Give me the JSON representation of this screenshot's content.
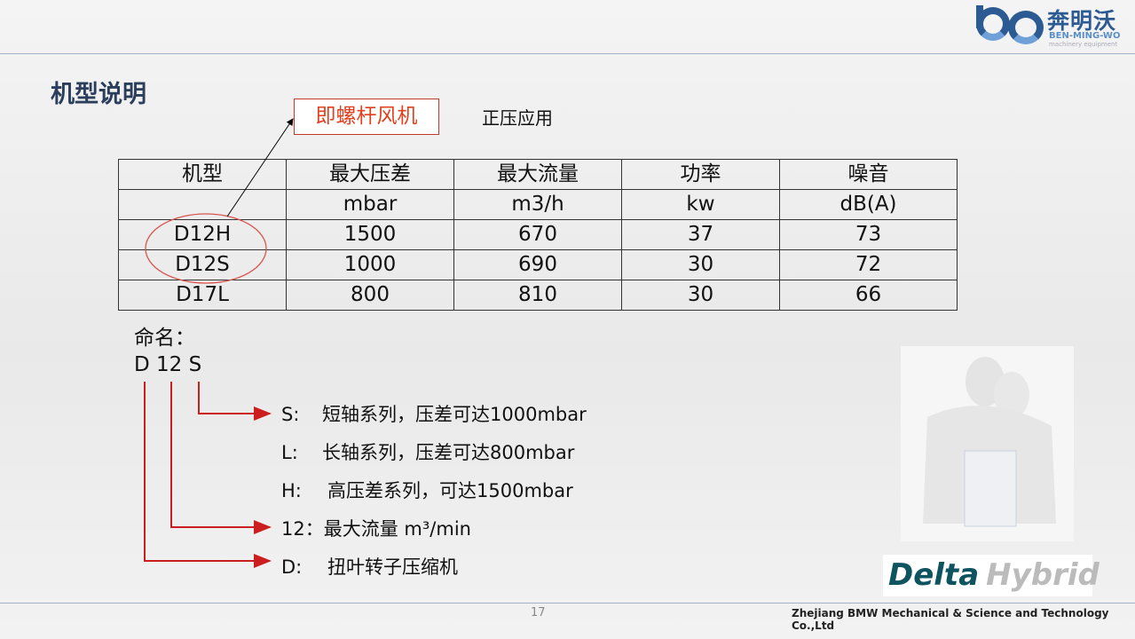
{
  "logo": {
    "cn": "奔明沃",
    "en": "BEN-MING-WO",
    "sub": "machinery equipment",
    "colors": {
      "primary": "#2c5a92",
      "light": "#6fa0d8"
    }
  },
  "title": "机型说明",
  "callout": "即螺杆风机",
  "note": "正压应用",
  "table": {
    "headers": [
      "机型",
      "最大压差",
      "最大流量",
      "功率",
      "噪音"
    ],
    "units": [
      "",
      "mbar",
      "m3/h",
      "kw",
      "dB(A)"
    ],
    "rows": [
      [
        "D12H",
        "1500",
        "670",
        "37",
        "73"
      ],
      [
        "D12S",
        "1000",
        "690",
        "30",
        "72"
      ],
      [
        "D17L",
        "800",
        "810",
        "30",
        "66"
      ]
    ]
  },
  "naming": {
    "label": "命名：",
    "code": "D 12 S",
    "legend": [
      {
        "key": "S:",
        "text": "短轴系列，压差可达1000mbar"
      },
      {
        "key": "L:",
        "text": "长轴系列，压差可达800mbar"
      },
      {
        "key": "H:",
        "text": "高压差系列，可达1500mbar"
      },
      {
        "key": "12：",
        "text": "最大流量 m³/min"
      },
      {
        "key": "D:",
        "text": "扭叶转子压缩机"
      }
    ]
  },
  "brand": {
    "delta": "Delta",
    "hybrid": "Hybrid"
  },
  "footer": {
    "page": "17",
    "company": "Zhejiang BMW Mechanical & Science and Technology Co.,Ltd"
  },
  "colors": {
    "accent_red": "#e2401f",
    "arrow_red": "#cc1e1e",
    "title": "#2b3f5c"
  }
}
